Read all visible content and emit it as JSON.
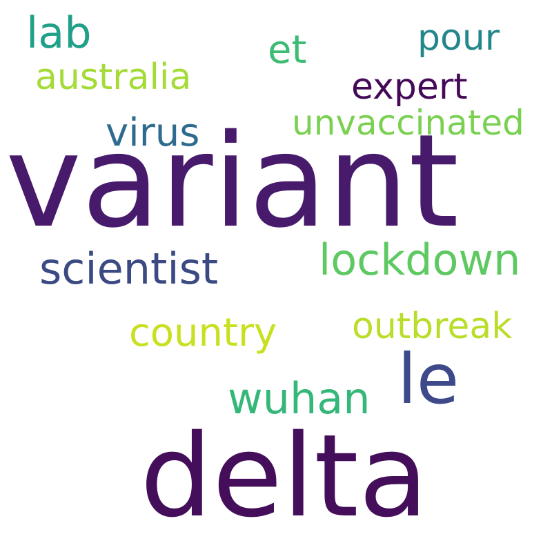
{
  "words": {
    "variant": {
      "text": "variant",
      "color": "#481a6c"
    },
    "delta": {
      "text": "delta",
      "color": "#440e5a"
    },
    "le": {
      "text": "le",
      "color": "#3e4989"
    },
    "scientist": {
      "text": "scientist",
      "color": "#3b4a82"
    },
    "lockdown": {
      "text": "lockdown",
      "color": "#5ec962"
    },
    "wuhan": {
      "text": "wuhan",
      "color": "#35b779"
    },
    "lab": {
      "text": "lab",
      "color": "#21a089"
    },
    "country": {
      "text": "country",
      "color": "#c8e020"
    },
    "virus": {
      "text": "virus",
      "color": "#2f6b8e"
    },
    "et": {
      "text": "et",
      "color": "#3dbc74"
    },
    "outbreak": {
      "text": "outbreak",
      "color": "#b8de29"
    },
    "australia": {
      "text": "australia",
      "color": "#a5db36"
    },
    "expert": {
      "text": "expert",
      "color": "#440a58"
    },
    "pour": {
      "text": "pour",
      "color": "#22878c"
    },
    "unvaccinated": {
      "text": "unvaccinated",
      "color": "#7ad151"
    }
  }
}
